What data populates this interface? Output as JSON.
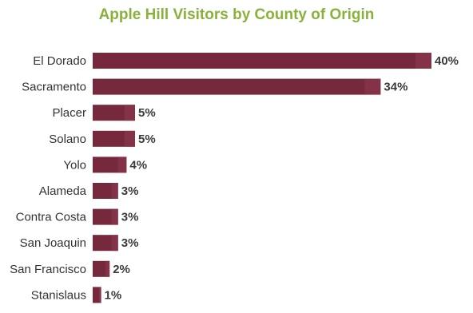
{
  "chart_data": {
    "type": "bar",
    "orientation": "horizontal",
    "title": "Apple Hill Visitors by County of Origin",
    "categories": [
      "El Dorado",
      "Sacramento",
      "Placer",
      "Solano",
      "Yolo",
      "Alameda",
      "Contra Costa",
      "San Joaquin",
      "San Francisco",
      "Stanislaus"
    ],
    "values": [
      40,
      34,
      5,
      5,
      4,
      3,
      3,
      3,
      2,
      1
    ],
    "value_labels": [
      "40%",
      "34%",
      "5%",
      "5%",
      "4%",
      "3%",
      "3%",
      "3%",
      "2%",
      "1%"
    ],
    "xlim": [
      0,
      40
    ],
    "grid": false,
    "legend": "none"
  },
  "colors": {
    "bar": "#76293d",
    "bar_highlight": "#8e3a50",
    "title": "#8ab13b"
  }
}
